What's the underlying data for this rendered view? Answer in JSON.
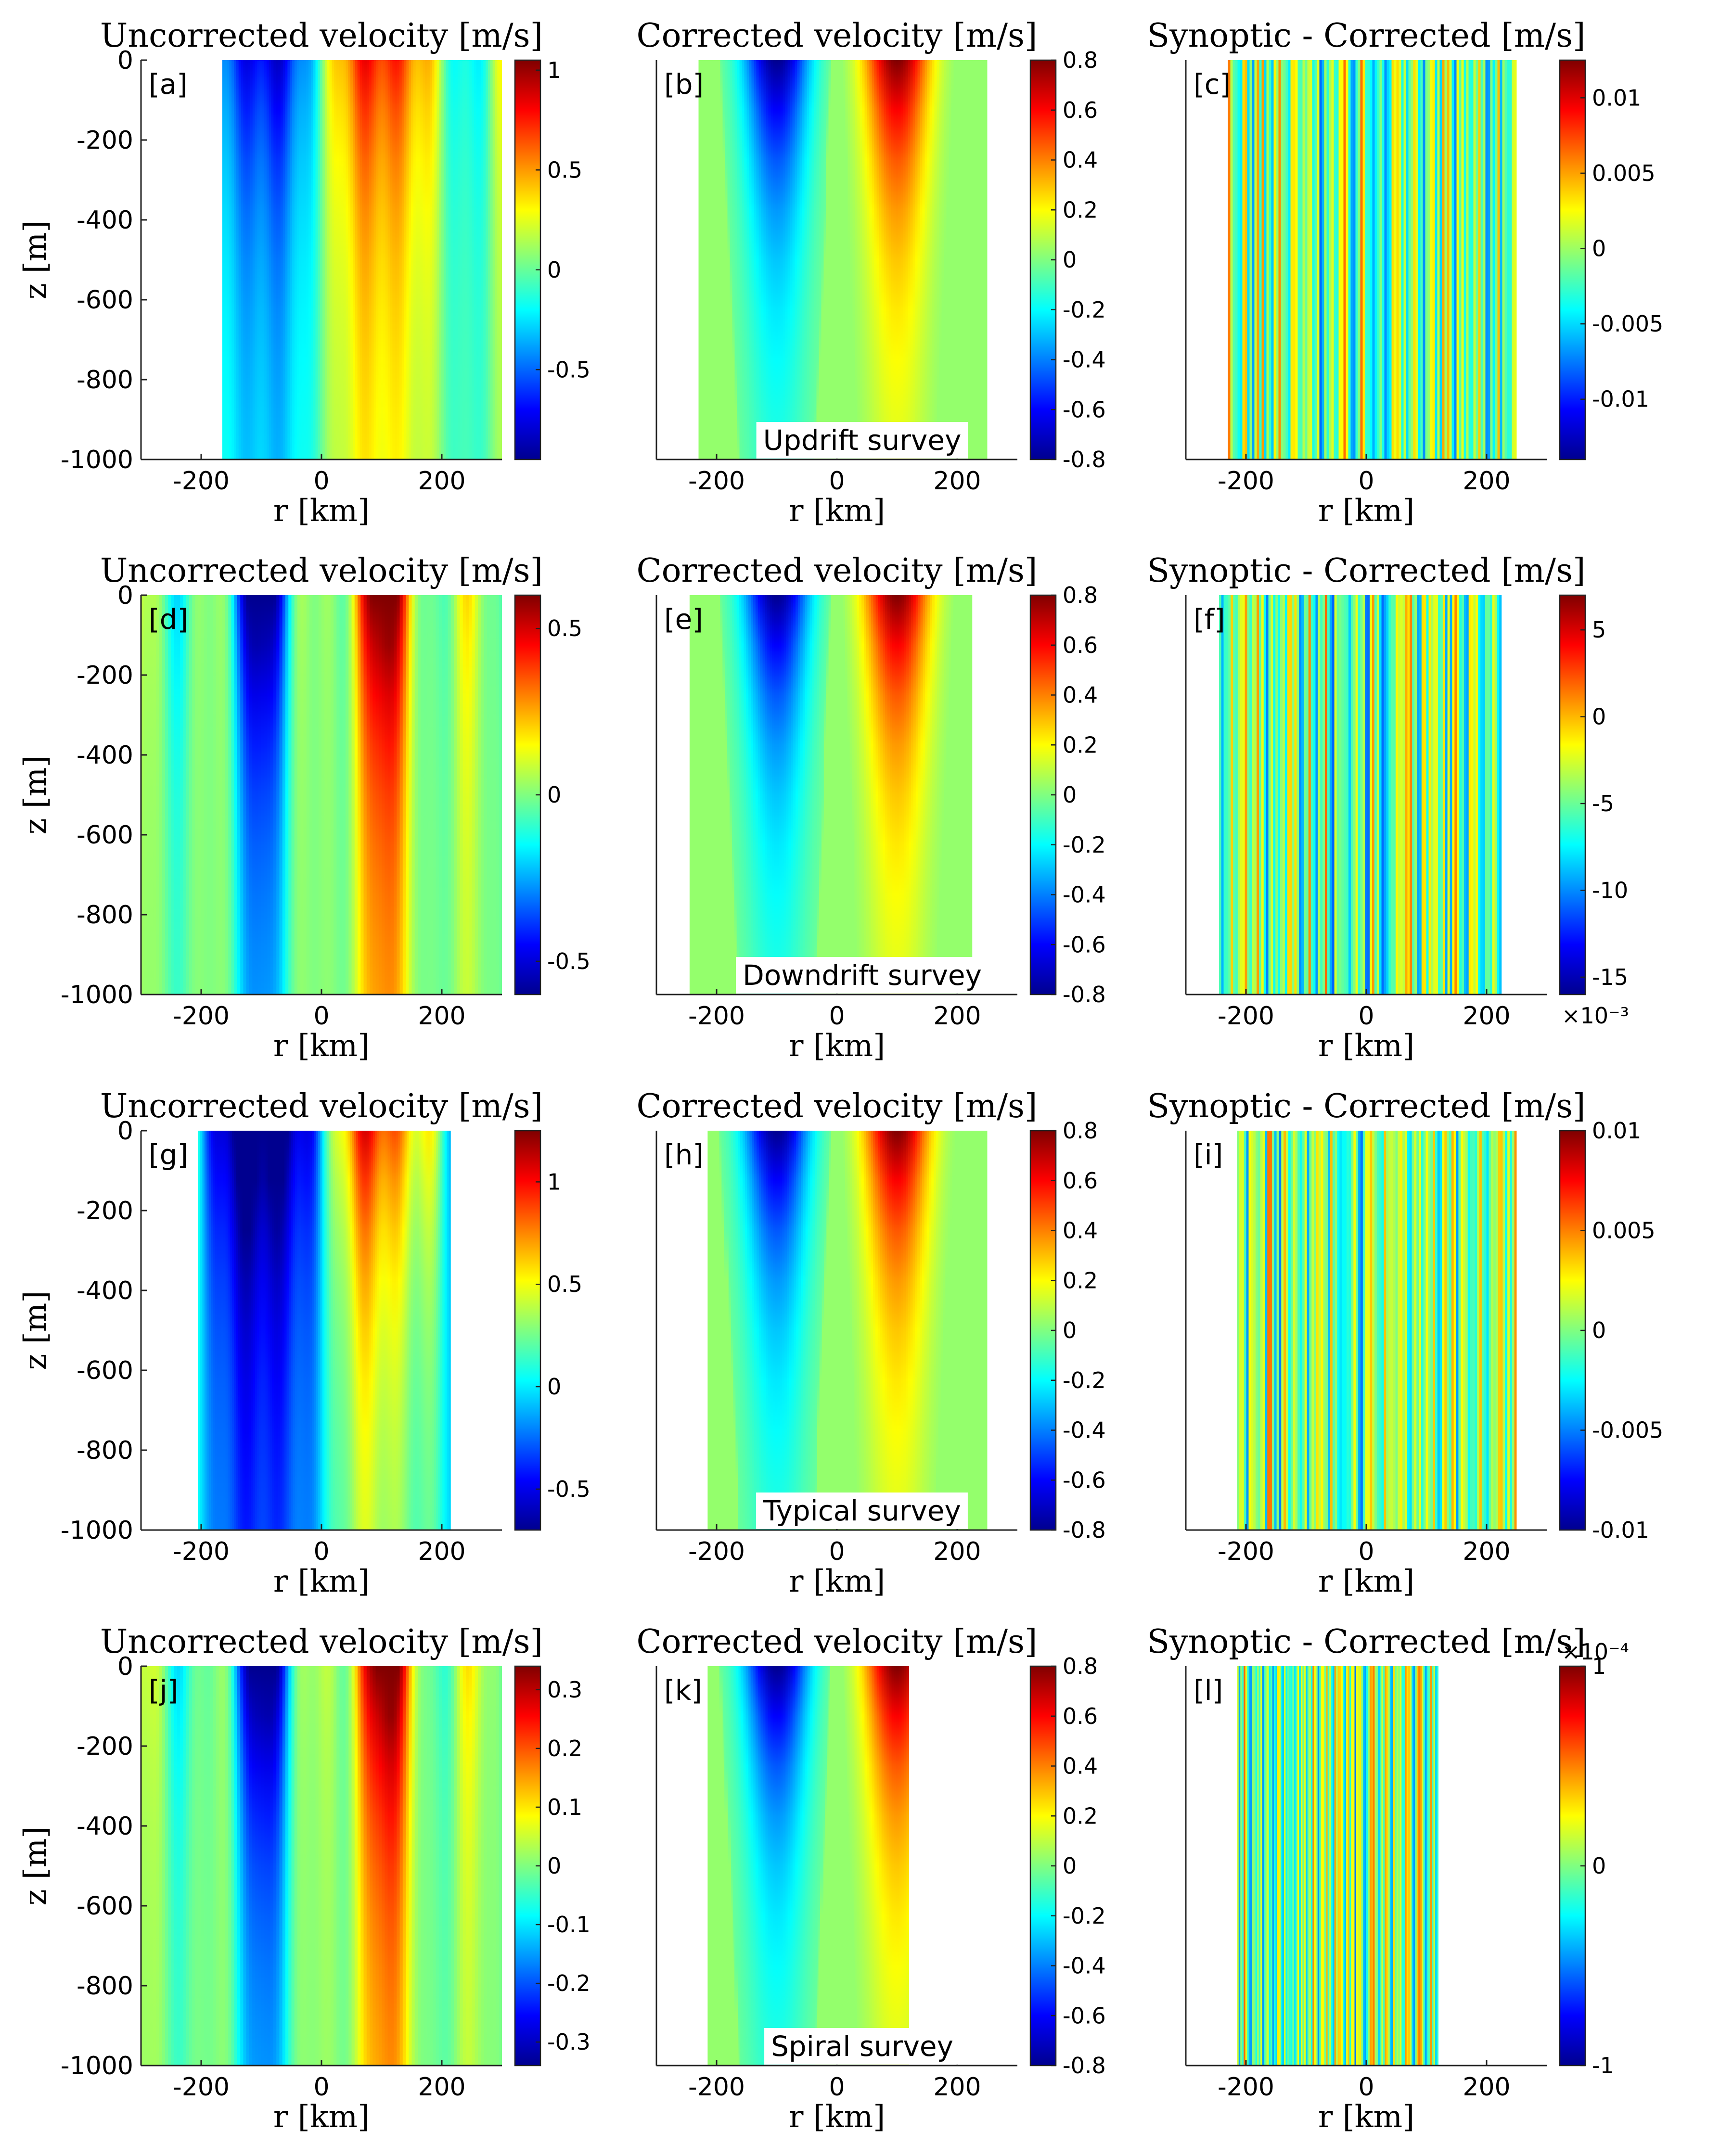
{
  "colormap": [
    "#00008f",
    "#0000ff",
    "#0080ff",
    "#00ffff",
    "#80ff80",
    "#ffff00",
    "#ff8000",
    "#ff0000",
    "#800000"
  ],
  "chart_data": [
    {
      "id": "a",
      "type": "heatmap",
      "title": "Uncorrected velocity [m/s]",
      "panel_label": "[a]",
      "xlabel": "r [km]",
      "ylabel": "z [m]",
      "xlim": [
        -300,
        300
      ],
      "ylim": [
        -1000,
        0
      ],
      "xticks": [
        -200,
        0,
        200
      ],
      "yticks": [
        0,
        -200,
        -400,
        -600,
        -800,
        -1000
      ],
      "data_extent_x": [
        -165,
        300
      ],
      "colorbar": {
        "min": -0.95,
        "max": 1.05,
        "ticks": [
          1,
          0.5,
          0,
          -0.5
        ],
        "tick_labels": [
          "1",
          "0.5",
          "0",
          "-0.5"
        ]
      },
      "annotation": ""
    },
    {
      "id": "b",
      "type": "heatmap",
      "title": "Corrected velocity [m/s]",
      "panel_label": "[b]",
      "xlabel": "r [km]",
      "ylabel": "",
      "xlim": [
        -300,
        300
      ],
      "ylim": [
        -1000,
        0
      ],
      "xticks": [
        -200,
        0,
        200
      ],
      "yticks": [],
      "data_extent_x": [
        -230,
        250
      ],
      "colorbar": {
        "min": -0.8,
        "max": 0.8,
        "ticks": [
          0.8,
          0.6,
          0.4,
          0.2,
          0,
          -0.2,
          -0.4,
          -0.6,
          -0.8
        ],
        "tick_labels": [
          "0.8",
          "0.6",
          "0.4",
          "0.2",
          "0",
          "-0.2",
          "-0.4",
          "-0.6",
          "-0.8"
        ]
      },
      "annotation": "Updrift survey"
    },
    {
      "id": "c",
      "type": "heatmap",
      "title": "Synoptic - Corrected [m/s]",
      "panel_label": "[c]",
      "xlabel": "r [km]",
      "ylabel": "",
      "xlim": [
        -300,
        300
      ],
      "ylim": [
        -1000,
        0
      ],
      "xticks": [
        -200,
        0,
        200
      ],
      "yticks": [],
      "data_extent_x": [
        -230,
        250
      ],
      "colorbar": {
        "min": -0.014,
        "max": 0.0125,
        "ticks": [
          0.01,
          0.005,
          0,
          -0.005,
          -0.01
        ],
        "tick_labels": [
          "0.01",
          "0.005",
          "0",
          "-0.005",
          "-0.01"
        ]
      },
      "annotation": ""
    },
    {
      "id": "d",
      "type": "heatmap",
      "title": "Uncorrected velocity [m/s]",
      "panel_label": "[d]",
      "xlabel": "r [km]",
      "ylabel": "z [m]",
      "xlim": [
        -300,
        300
      ],
      "ylim": [
        -1000,
        0
      ],
      "xticks": [
        -200,
        0,
        200
      ],
      "yticks": [
        0,
        -200,
        -400,
        -600,
        -800,
        -1000
      ],
      "data_extent_x": [
        -300,
        300
      ],
      "colorbar": {
        "min": -0.6,
        "max": 0.6,
        "ticks": [
          0.5,
          0,
          -0.5
        ],
        "tick_labels": [
          "0.5",
          "0",
          "-0.5"
        ]
      },
      "annotation": ""
    },
    {
      "id": "e",
      "type": "heatmap",
      "title": "Corrected velocity [m/s]",
      "panel_label": "[e]",
      "xlabel": "r [km]",
      "ylabel": "",
      "xlim": [
        -300,
        300
      ],
      "ylim": [
        -1000,
        0
      ],
      "xticks": [
        -200,
        0,
        200
      ],
      "yticks": [],
      "data_extent_x": [
        -245,
        225
      ],
      "colorbar": {
        "min": -0.8,
        "max": 0.8,
        "ticks": [
          0.8,
          0.6,
          0.4,
          0.2,
          0,
          -0.2,
          -0.4,
          -0.6,
          -0.8
        ],
        "tick_labels": [
          "0.8",
          "0.6",
          "0.4",
          "0.2",
          "0",
          "-0.2",
          "-0.4",
          "-0.6",
          "-0.8"
        ]
      },
      "annotation": "Downdrift survey"
    },
    {
      "id": "f",
      "type": "heatmap",
      "title": "Synoptic - Corrected [m/s]",
      "panel_label": "[f]",
      "xlabel": "r [km]",
      "ylabel": "",
      "xlim": [
        -300,
        300
      ],
      "ylim": [
        -1000,
        0
      ],
      "xticks": [
        -200,
        0,
        200
      ],
      "yticks": [],
      "data_extent_x": [
        -245,
        225
      ],
      "colorbar": {
        "min": -16,
        "max": 7,
        "ticks": [
          5,
          0,
          -5,
          -10,
          -15
        ],
        "tick_labels": [
          "5",
          "0",
          "-5",
          "-10",
          "-15"
        ],
        "exponent": "×10⁻³",
        "exponent_pos": "bottom"
      },
      "annotation": ""
    },
    {
      "id": "g",
      "type": "heatmap",
      "title": "Uncorrected velocity [m/s]",
      "panel_label": "[g]",
      "xlabel": "r [km]",
      "ylabel": "z [m]",
      "xlim": [
        -300,
        300
      ],
      "ylim": [
        -1000,
        0
      ],
      "xticks": [
        -200,
        0,
        200
      ],
      "yticks": [
        0,
        -200,
        -400,
        -600,
        -800,
        -1000
      ],
      "data_extent_x": [
        -205,
        215
      ],
      "colorbar": {
        "min": -0.7,
        "max": 1.25,
        "ticks": [
          1,
          0.5,
          0,
          -0.5
        ],
        "tick_labels": [
          "1",
          "0.5",
          "0",
          "-0.5"
        ]
      },
      "annotation": ""
    },
    {
      "id": "h",
      "type": "heatmap",
      "title": "Corrected velocity [m/s]",
      "panel_label": "[h]",
      "xlabel": "r [km]",
      "ylabel": "",
      "xlim": [
        -300,
        300
      ],
      "ylim": [
        -1000,
        0
      ],
      "xticks": [
        -200,
        0,
        200
      ],
      "yticks": [],
      "data_extent_x": [
        -215,
        250
      ],
      "colorbar": {
        "min": -0.8,
        "max": 0.8,
        "ticks": [
          0.8,
          0.6,
          0.4,
          0.2,
          0,
          -0.2,
          -0.4,
          -0.6,
          -0.8
        ],
        "tick_labels": [
          "0.8",
          "0.6",
          "0.4",
          "0.2",
          "0",
          "-0.2",
          "-0.4",
          "-0.6",
          "-0.8"
        ]
      },
      "annotation": "Typical survey"
    },
    {
      "id": "i",
      "type": "heatmap",
      "title": "Synoptic - Corrected [m/s]",
      "panel_label": "[i]",
      "xlabel": "r [km]",
      "ylabel": "",
      "xlim": [
        -300,
        300
      ],
      "ylim": [
        -1000,
        0
      ],
      "xticks": [
        -200,
        0,
        200
      ],
      "yticks": [],
      "data_extent_x": [
        -215,
        250
      ],
      "colorbar": {
        "min": -0.01,
        "max": 0.01,
        "ticks": [
          0.01,
          0.005,
          0,
          -0.005,
          -0.01
        ],
        "tick_labels": [
          "0.01",
          "0.005",
          "0",
          "-0.005",
          "-0.01"
        ]
      },
      "annotation": ""
    },
    {
      "id": "j",
      "type": "heatmap",
      "title": "Uncorrected velocity [m/s]",
      "panel_label": "[j]",
      "xlabel": "r [km]",
      "ylabel": "z [m]",
      "xlim": [
        -300,
        300
      ],
      "ylim": [
        -1000,
        0
      ],
      "xticks": [
        -200,
        0,
        200
      ],
      "yticks": [
        0,
        -200,
        -400,
        -600,
        -800,
        -1000
      ],
      "data_extent_x": [
        -300,
        300
      ],
      "colorbar": {
        "min": -0.34,
        "max": 0.34,
        "ticks": [
          0.3,
          0.2,
          0.1,
          0,
          -0.1,
          -0.2,
          -0.3
        ],
        "tick_labels": [
          "0.3",
          "0.2",
          "0.1",
          "0",
          "-0.1",
          "-0.2",
          "-0.3"
        ]
      },
      "annotation": ""
    },
    {
      "id": "k",
      "type": "heatmap",
      "title": "Corrected velocity [m/s]",
      "panel_label": "[k]",
      "xlabel": "r [km]",
      "ylabel": "",
      "xlim": [
        -300,
        300
      ],
      "ylim": [
        -1000,
        0
      ],
      "xticks": [
        -200,
        0,
        200
      ],
      "yticks": [],
      "data_extent_x": [
        -215,
        120
      ],
      "colorbar": {
        "min": -0.8,
        "max": 0.8,
        "ticks": [
          0.8,
          0.6,
          0.4,
          0.2,
          0,
          -0.2,
          -0.4,
          -0.6,
          -0.8
        ],
        "tick_labels": [
          "0.8",
          "0.6",
          "0.4",
          "0.2",
          "0",
          "-0.2",
          "-0.4",
          "-0.6",
          "-0.8"
        ]
      },
      "annotation": "Spiral survey"
    },
    {
      "id": "l",
      "type": "heatmap",
      "title": "Synoptic - Corrected [m/s]",
      "panel_label": "[l]",
      "xlabel": "r [km]",
      "ylabel": "",
      "xlim": [
        -300,
        300
      ],
      "ylim": [
        -1000,
        0
      ],
      "xticks": [
        -200,
        0,
        200
      ],
      "yticks": [],
      "data_extent_x": [
        -215,
        120
      ],
      "colorbar": {
        "min": -1,
        "max": 1,
        "ticks": [
          1,
          0,
          -1
        ],
        "tick_labels": [
          "1",
          "0",
          "-1"
        ],
        "exponent": "×10⁻⁴",
        "exponent_pos": "top"
      },
      "annotation": ""
    }
  ]
}
